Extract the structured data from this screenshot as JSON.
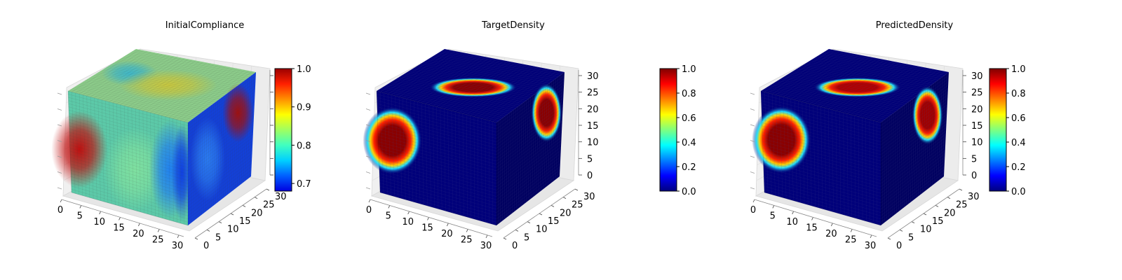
{
  "chart_data": [
    {
      "type": "voxel-3d",
      "title": "InitialCompliance",
      "colormap": "jet",
      "x_ticks": [
        "0",
        "5",
        "10",
        "15",
        "20",
        "25",
        "30"
      ],
      "y_ticks": [
        "0",
        "5",
        "10",
        "15",
        "20",
        "25",
        "30"
      ],
      "z_ticks": [],
      "colorbar": {
        "min": 0.68,
        "max": 1.0,
        "ticks": [
          "0.7",
          "0.8",
          "0.9",
          "1.0"
        ],
        "tick_values": [
          0.7,
          0.8,
          0.9,
          1.0
        ]
      },
      "face_colors": {
        "front": "#5cc9a8",
        "top": "#8ccc8a",
        "side": "#1340d8"
      },
      "hot_spots": [
        {
          "face": "front",
          "u": 0.08,
          "v": 0.55,
          "value": 1.0,
          "color": "#c01010"
        },
        {
          "face": "side",
          "u": 0.75,
          "v": 0.27,
          "value": 0.98,
          "color": "#a01010"
        },
        {
          "face": "top",
          "u": 0.55,
          "v": 0.5,
          "value": 0.88,
          "color": "#c8c840"
        }
      ]
    },
    {
      "type": "voxel-3d",
      "title": "TargetDensity",
      "colormap": "jet",
      "x_ticks": [
        "0",
        "5",
        "10",
        "15",
        "20",
        "25",
        "30"
      ],
      "y_ticks": [
        "0",
        "5",
        "10",
        "15",
        "20",
        "25",
        "30"
      ],
      "z_ticks": [
        "0",
        "5",
        "10",
        "15",
        "20",
        "25",
        "30"
      ],
      "colorbar": {
        "min": 0.0,
        "max": 1.0,
        "ticks": [
          "0.0",
          "0.2",
          "0.4",
          "0.6",
          "0.8",
          "1.0"
        ],
        "tick_values": [
          0.0,
          0.2,
          0.4,
          0.6,
          0.8,
          1.0
        ]
      },
      "face_colors": {
        "front": "#00007a",
        "top": "#000078",
        "side": "#000060"
      },
      "hot_spots": [
        {
          "face": "front",
          "u": 0.12,
          "v": 0.45,
          "value": 1.0,
          "color": "#8a0000"
        },
        {
          "face": "top",
          "u": 0.55,
          "v": 0.55,
          "value": 1.0,
          "color": "#8a0000"
        },
        {
          "face": "side",
          "u": 0.75,
          "v": 0.27,
          "value": 1.0,
          "color": "#8a0000"
        }
      ]
    },
    {
      "type": "voxel-3d",
      "title": "PredictedDensity",
      "colormap": "jet",
      "x_ticks": [
        "0",
        "5",
        "10",
        "15",
        "20",
        "25",
        "30"
      ],
      "y_ticks": [
        "0",
        "5",
        "10",
        "15",
        "20",
        "25",
        "30"
      ],
      "z_ticks": [
        "0",
        "5",
        "10",
        "15",
        "20",
        "25",
        "30"
      ],
      "colorbar": {
        "min": 0.0,
        "max": 1.0,
        "ticks": [
          "0.0",
          "0.2",
          "0.4",
          "0.6",
          "0.8",
          "1.0"
        ],
        "tick_values": [
          0.0,
          0.2,
          0.4,
          0.6,
          0.8,
          1.0
        ]
      },
      "face_colors": {
        "front": "#00007a",
        "top": "#000078",
        "side": "#000060"
      },
      "hot_spots": [
        {
          "face": "front",
          "u": 0.16,
          "v": 0.43,
          "value": 1.0,
          "color": "#8a0000"
        },
        {
          "face": "top",
          "u": 0.55,
          "v": 0.55,
          "value": 0.95,
          "color": "#b00000"
        },
        {
          "face": "side",
          "u": 0.7,
          "v": 0.27,
          "value": 0.95,
          "color": "#a00000"
        }
      ]
    }
  ]
}
